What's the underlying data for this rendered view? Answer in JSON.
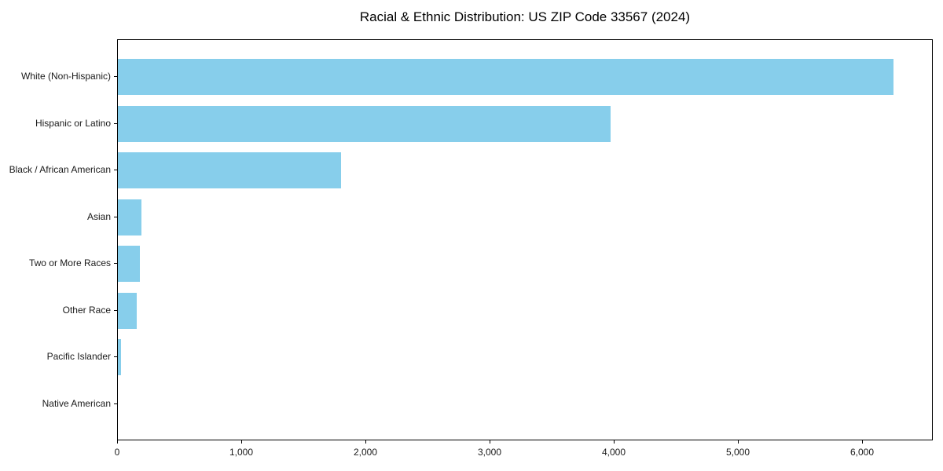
{
  "chart_data": {
    "type": "bar",
    "orientation": "horizontal",
    "title": "Racial & Ethnic Distribution: US ZIP Code 33567 (2024)",
    "categories": [
      "White (Non-Hispanic)",
      "Hispanic or Latino",
      "Black / African American",
      "Asian",
      "Two or More Races",
      "Other Race",
      "Pacific Islander",
      "Native American"
    ],
    "values": [
      6250,
      3970,
      1800,
      190,
      175,
      150,
      25,
      0
    ],
    "xlabel": "",
    "ylabel": "",
    "xlim": [
      0,
      6570
    ],
    "xticks": [
      0,
      1000,
      2000,
      3000,
      4000,
      5000,
      6000
    ],
    "xtick_labels": [
      "0",
      "1,000",
      "2,000",
      "3,000",
      "4,000",
      "5,000",
      "6,000"
    ],
    "bar_color": "#87CEEB",
    "axis_color": "#000000",
    "text_color": "#1a1a1a",
    "grid": false,
    "legend": null
  }
}
